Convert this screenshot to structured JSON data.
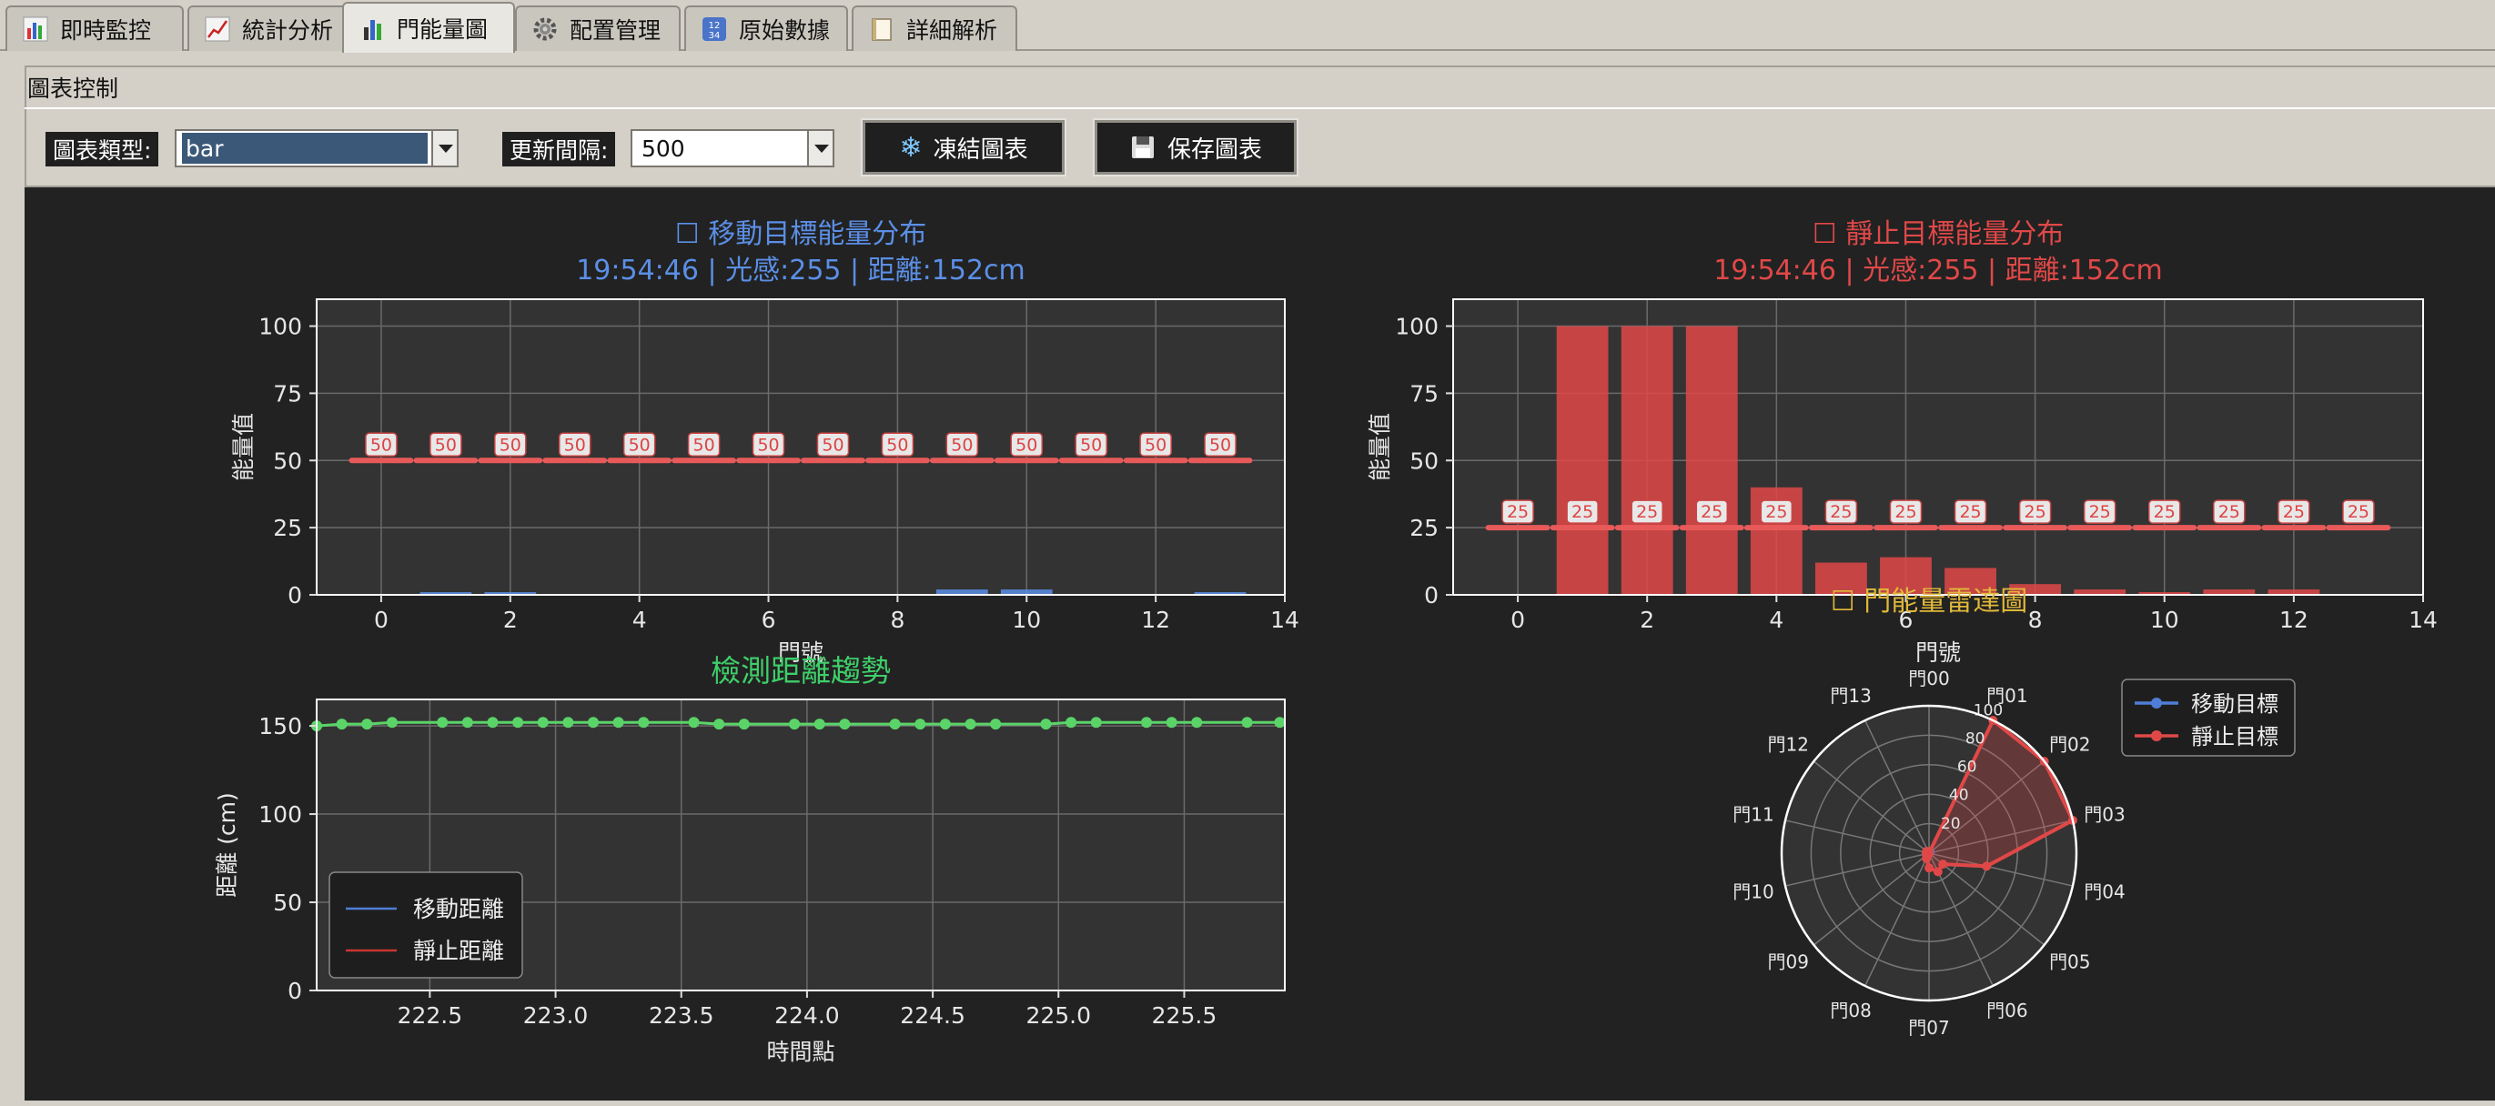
{
  "tabs": [
    {
      "label": "即時監控",
      "icon": "bar-chart-icon",
      "active": false
    },
    {
      "label": "統計分析",
      "icon": "line-chart-icon",
      "active": false
    },
    {
      "label": "門能量圖",
      "icon": "bar-chart-icon",
      "active": true
    },
    {
      "label": "配置管理",
      "icon": "gear-icon",
      "active": false
    },
    {
      "label": "原始數據",
      "icon": "numbers-icon",
      "active": false
    },
    {
      "label": "詳細解析",
      "icon": "document-icon",
      "active": false
    }
  ],
  "controls": {
    "group_title": "圖表控制",
    "chart_type_label": "圖表類型:",
    "chart_type_value": "bar",
    "interval_label": "更新間隔:",
    "interval_value": "500",
    "freeze_button": "凍結圖表",
    "freeze_icon": "snowflake-icon",
    "save_button": "保存圖表",
    "save_icon": "floppy-disk-icon"
  },
  "colors": {
    "moving": "#5b8fe6",
    "static": "#e04848",
    "distance_title": "#3fcf6a",
    "radar_title": "#e0b83a",
    "plot_bg": "#333333",
    "figure_bg": "#222222"
  },
  "chart_data": [
    {
      "id": "moving",
      "type": "bar",
      "title": "☐ 移動目標能量分布",
      "subtitle": "19:54:46 | 光感:255 | 距離:152cm",
      "xlabel": "門號",
      "ylabel": "能量值",
      "ylim": [
        0,
        110
      ],
      "xlim": [
        -1,
        14
      ],
      "xticks": [
        0,
        2,
        4,
        6,
        8,
        10,
        12,
        14
      ],
      "yticks": [
        0,
        25,
        50,
        75,
        100
      ],
      "categories": [
        0,
        1,
        2,
        3,
        4,
        5,
        6,
        7,
        8,
        9,
        10,
        11,
        12,
        13
      ],
      "values": [
        0,
        1,
        1,
        0,
        0,
        0,
        0,
        0,
        0,
        2,
        2,
        0,
        0,
        1
      ],
      "thresholds": [
        50,
        50,
        50,
        50,
        50,
        50,
        50,
        50,
        50,
        50,
        50,
        50,
        50,
        50
      ],
      "threshold_labels": [
        "50",
        "50",
        "50",
        "50",
        "50",
        "50",
        "50",
        "50",
        "50",
        "50",
        "50",
        "50",
        "50",
        "50"
      ],
      "grid": true
    },
    {
      "id": "static",
      "type": "bar",
      "title": "☐ 靜止目標能量分布",
      "subtitle": "19:54:46 | 光感:255 | 距離:152cm",
      "xlabel": "門號",
      "ylabel": "能量值",
      "ylim": [
        0,
        110
      ],
      "xlim": [
        -1,
        14
      ],
      "xticks": [
        0,
        2,
        4,
        6,
        8,
        10,
        12,
        14
      ],
      "yticks": [
        0,
        25,
        50,
        75,
        100
      ],
      "categories": [
        0,
        1,
        2,
        3,
        4,
        5,
        6,
        7,
        8,
        9,
        10,
        11,
        12,
        13
      ],
      "values": [
        0,
        100,
        100,
        100,
        40,
        12,
        14,
        10,
        4,
        2,
        1,
        2,
        2,
        0
      ],
      "thresholds": [
        25,
        25,
        25,
        25,
        25,
        25,
        25,
        25,
        25,
        25,
        25,
        25,
        25,
        25
      ],
      "threshold_labels": [
        "25",
        "25",
        "25",
        "25",
        "25",
        "25",
        "25",
        "25",
        "25",
        "25",
        "25",
        "25",
        "25",
        "25"
      ],
      "grid": true
    },
    {
      "id": "distance",
      "type": "line",
      "title": "檢測距離趨勢",
      "xlabel": "時間點",
      "ylabel": "距離 (cm)",
      "xlim": [
        222.05,
        225.9
      ],
      "ylim": [
        0,
        165
      ],
      "xticks": [
        222.5,
        223.0,
        223.5,
        224.0,
        224.5,
        225.0,
        225.5
      ],
      "xtick_labels": [
        "222.5",
        "223.0",
        "223.5",
        "224.0",
        "224.5",
        "225.0",
        "225.5"
      ],
      "yticks": [
        0,
        50,
        100,
        150
      ],
      "x": [
        222.05,
        222.15,
        222.25,
        222.35,
        222.55,
        222.65,
        222.75,
        222.85,
        222.95,
        223.05,
        223.15,
        223.25,
        223.35,
        223.55,
        223.65,
        223.75,
        223.95,
        224.05,
        224.15,
        224.35,
        224.45,
        224.55,
        224.65,
        224.75,
        224.95,
        225.05,
        225.15,
        225.35,
        225.45,
        225.55,
        225.75,
        225.88
      ],
      "series": [
        {
          "name": "移動距離",
          "color": "#4f7ed6",
          "values": [
            150,
            151,
            151,
            152,
            152,
            152,
            152,
            152,
            152,
            152,
            152,
            152,
            152,
            152,
            151,
            151,
            151,
            151,
            151,
            151,
            151,
            151,
            151,
            151,
            151,
            152,
            152,
            152,
            152,
            152,
            152,
            152
          ]
        },
        {
          "name": "靜止距離",
          "color": "#c8362f",
          "values": [
            150,
            151,
            151,
            152,
            152,
            152,
            152,
            152,
            152,
            152,
            152,
            152,
            152,
            152,
            151,
            151,
            151,
            151,
            151,
            151,
            151,
            151,
            151,
            151,
            151,
            152,
            152,
            152,
            152,
            152,
            152,
            152
          ]
        }
      ],
      "marker_series": {
        "color": "#5ad468",
        "values": [
          150,
          151,
          151,
          152,
          152,
          152,
          152,
          152,
          152,
          152,
          152,
          152,
          152,
          152,
          151,
          151,
          151,
          151,
          151,
          151,
          151,
          151,
          151,
          151,
          151,
          152,
          152,
          152,
          152,
          152,
          152,
          152
        ]
      },
      "legend": "lower-left",
      "grid": true
    },
    {
      "id": "radar",
      "type": "radar",
      "title": "☐ 門能量雷達圖",
      "axes": [
        "門00",
        "門01",
        "門02",
        "門03",
        "門04",
        "門05",
        "門06",
        "門07",
        "門08",
        "門09",
        "門10",
        "門11",
        "門12",
        "門13"
      ],
      "rlim": [
        0,
        100
      ],
      "rticks": [
        20,
        40,
        60,
        80,
        100
      ],
      "rtick_labels": [
        "20",
        "40",
        "60",
        "80",
        "100"
      ],
      "series": [
        {
          "name": "移動目標",
          "color": "#4f7ed6",
          "values": [
            0,
            1,
            1,
            0,
            0,
            0,
            0,
            0,
            0,
            2,
            2,
            0,
            0,
            1
          ]
        },
        {
          "name": "靜止目標",
          "color": "#e04848",
          "values": [
            0,
            100,
            100,
            100,
            40,
            12,
            14,
            10,
            4,
            2,
            1,
            2,
            2,
            0
          ]
        }
      ],
      "legend": "top-right",
      "grid": true
    }
  ]
}
